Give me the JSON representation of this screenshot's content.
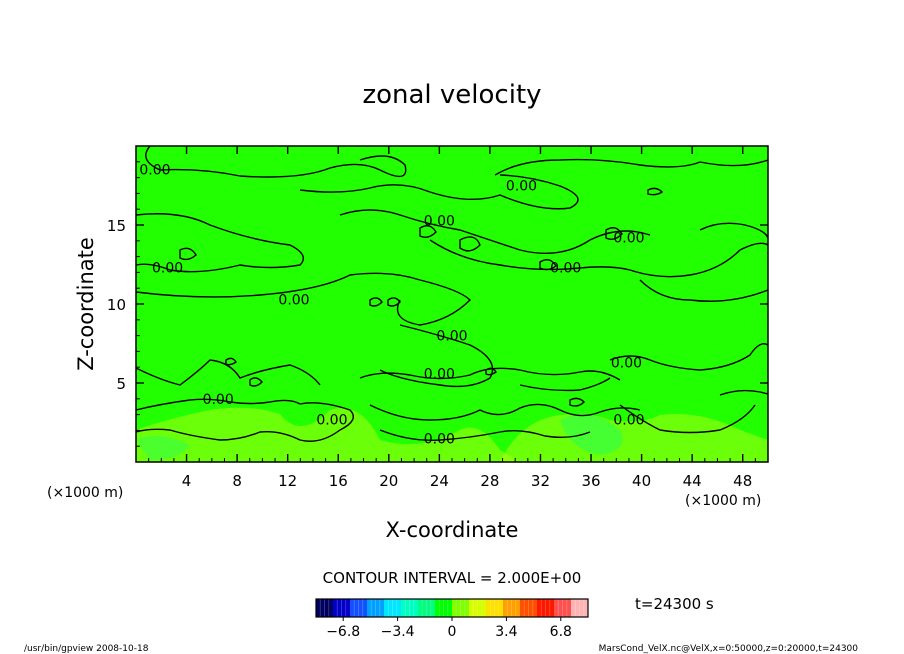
{
  "chart_data": {
    "type": "heatmap",
    "title": "zonal velocity",
    "xlabel": "X-coordinate",
    "ylabel": "Z-coordinate",
    "x_unit_left": "(×1000 m)",
    "x_unit_right": "(×1000 m)",
    "xlim": [
      0,
      50
    ],
    "ylim": [
      0,
      20
    ],
    "x_ticks": [
      4,
      8,
      12,
      16,
      20,
      24,
      28,
      32,
      36,
      40,
      44,
      48
    ],
    "x_tick_labels": [
      "4",
      "8",
      "12",
      "16",
      "20",
      "24",
      "28",
      "32",
      "36",
      "40",
      "44",
      "48"
    ],
    "y_ticks": [
      5,
      10,
      15
    ],
    "y_tick_labels": [
      "5",
      "10",
      "15"
    ],
    "contour_interval_text": "CONTOUR INTERVAL = 2.000E+00",
    "time_label": "t=24300 s",
    "contour_labels": [
      {
        "text": "0.00",
        "x": 1.5,
        "y": 18.5
      },
      {
        "text": "0.00",
        "x": 30.5,
        "y": 17.5
      },
      {
        "text": "0.00",
        "x": 24.0,
        "y": 15.3
      },
      {
        "text": "0.00",
        "x": 39.0,
        "y": 14.2
      },
      {
        "text": "0.00",
        "x": 2.5,
        "y": 12.3
      },
      {
        "text": "0.00",
        "x": 34.0,
        "y": 12.3
      },
      {
        "text": "0.00",
        "x": 12.5,
        "y": 10.3
      },
      {
        "text": "0.00",
        "x": 25.0,
        "y": 8.0
      },
      {
        "text": "0.00",
        "x": 38.8,
        "y": 6.3
      },
      {
        "text": "0.00",
        "x": 24.0,
        "y": 5.6
      },
      {
        "text": "0.00",
        "x": 6.5,
        "y": 4.0
      },
      {
        "text": "0.00",
        "x": 15.5,
        "y": 2.7
      },
      {
        "text": "0.00",
        "x": 24.0,
        "y": 1.5
      },
      {
        "text": "0.00",
        "x": 39.0,
        "y": 2.7
      }
    ],
    "colorbar": {
      "range": [
        -8.5,
        8.5
      ],
      "tick_values": [
        -6.8,
        -3.4,
        0,
        3.4,
        6.8
      ],
      "tick_labels": [
        "−6.8",
        "−3.4",
        "0",
        "3.4",
        "6.8"
      ],
      "colors": [
        "#000060",
        "#0000c8",
        "#1450ff",
        "#00a0ff",
        "#00e6ff",
        "#00ffc0",
        "#00ff80",
        "#00ff00",
        "#80ff00",
        "#d8ff00",
        "#ffe000",
        "#ffa000",
        "#ff5000",
        "#ff1800",
        "#ff5050",
        "#ffb4b4"
      ]
    }
  },
  "footer": {
    "left": "/usr/bin/gpview  2008-10-18",
    "right": "MarsCond_VelX.nc@VelX,x=0:50000,z=0:20000,t=24300"
  }
}
